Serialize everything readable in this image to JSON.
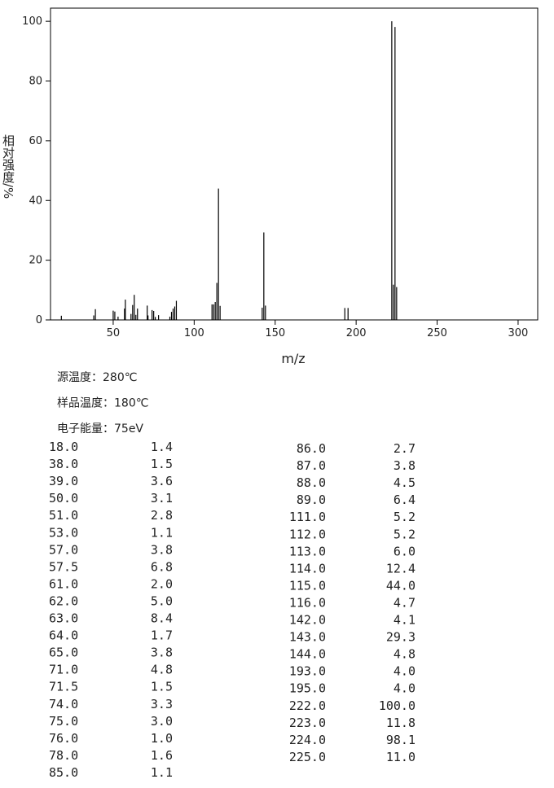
{
  "chart_data": {
    "type": "bar",
    "y_label": "相对强度/%",
    "x_label": "m/z",
    "xlim": [
      11.3,
      312.1
    ],
    "ylim": [
      0,
      104.4
    ],
    "xticks": [
      50,
      100,
      150,
      200,
      250,
      300
    ],
    "yticks": [
      0,
      20,
      40,
      60,
      80,
      100
    ],
    "color": "#000000",
    "x": [
      18,
      38,
      39,
      50,
      51,
      53,
      57,
      57.5,
      61,
      62,
      63,
      64,
      65,
      71,
      71.5,
      74,
      75,
      76,
      78,
      85,
      86,
      87,
      88,
      89,
      111,
      112,
      113,
      114,
      115,
      116,
      142,
      143,
      144,
      193,
      195,
      222,
      223,
      224,
      225
    ],
    "values": [
      1.4,
      1.5,
      3.6,
      3.1,
      2.8,
      1.1,
      3.8,
      6.8,
      2.0,
      5.0,
      8.4,
      1.7,
      3.8,
      4.8,
      1.5,
      3.3,
      3.0,
      1.0,
      1.6,
      1.1,
      2.7,
      3.8,
      4.5,
      6.4,
      5.2,
      5.2,
      6.0,
      12.4,
      44.0,
      4.7,
      4.1,
      29.3,
      4.8,
      4.0,
      4.0,
      100.0,
      11.8,
      98.1,
      11.0
    ]
  },
  "conditions": [
    "源温度：280℃",
    "样品温度：180℃",
    "电子能量：75eV"
  ],
  "table": {
    "left": [
      [
        "18.0",
        "1.4"
      ],
      [
        "38.0",
        "1.5"
      ],
      [
        "39.0",
        "3.6"
      ],
      [
        "50.0",
        "3.1"
      ],
      [
        "51.0",
        "2.8"
      ],
      [
        "53.0",
        "1.1"
      ],
      [
        "57.0",
        "3.8"
      ],
      [
        "57.5",
        "6.8"
      ],
      [
        "61.0",
        "2.0"
      ],
      [
        "62.0",
        "5.0"
      ],
      [
        "63.0",
        "8.4"
      ],
      [
        "64.0",
        "1.7"
      ],
      [
        "65.0",
        "3.8"
      ],
      [
        "71.0",
        "4.8"
      ],
      [
        "71.5",
        "1.5"
      ],
      [
        "74.0",
        "3.3"
      ],
      [
        "75.0",
        "3.0"
      ],
      [
        "76.0",
        "1.0"
      ],
      [
        "78.0",
        "1.6"
      ],
      [
        "85.0",
        "1.1"
      ]
    ],
    "right": [
      [
        "86.0",
        "2.7"
      ],
      [
        "87.0",
        "3.8"
      ],
      [
        "88.0",
        "4.5"
      ],
      [
        "89.0",
        "6.4"
      ],
      [
        "111.0",
        "5.2"
      ],
      [
        "112.0",
        "5.2"
      ],
      [
        "113.0",
        "6.0"
      ],
      [
        "114.0",
        "12.4"
      ],
      [
        "115.0",
        "44.0"
      ],
      [
        "116.0",
        "4.7"
      ],
      [
        "142.0",
        "4.1"
      ],
      [
        "143.0",
        "29.3"
      ],
      [
        "144.0",
        "4.8"
      ],
      [
        "193.0",
        "4.0"
      ],
      [
        "195.0",
        "4.0"
      ],
      [
        "222.0",
        "100.0"
      ],
      [
        "223.0",
        "11.8"
      ],
      [
        "224.0",
        "98.1"
      ],
      [
        "225.0",
        "11.0"
      ]
    ]
  }
}
